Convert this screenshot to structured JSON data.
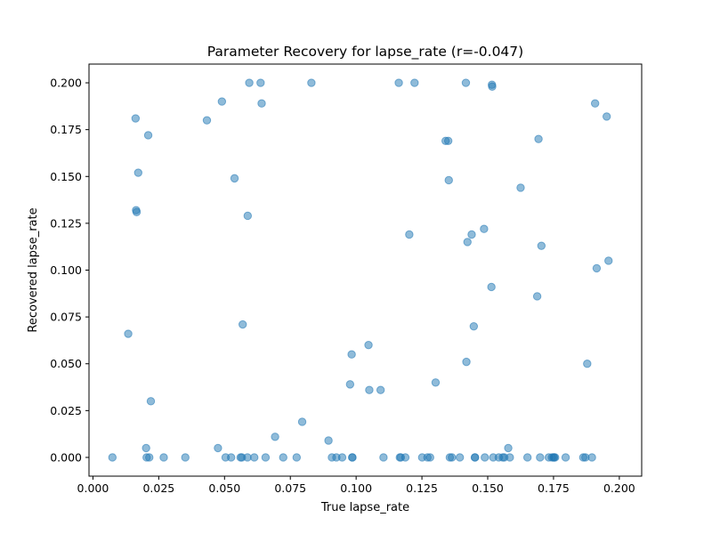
{
  "chart_data": {
    "type": "scatter",
    "title": "Parameter Recovery for lapse_rate (r=-0.047)",
    "xlabel": "True lapse_rate",
    "ylabel": "Recovered lapse_rate",
    "xlim": [
      -0.0015,
      0.2085
    ],
    "ylim": [
      -0.01,
      0.21
    ],
    "x_ticks": [
      0.0,
      0.025,
      0.05,
      0.075,
      0.1,
      0.125,
      0.15,
      0.175,
      0.2
    ],
    "x_tick_labels": [
      "0.000",
      "0.025",
      "0.050",
      "0.075",
      "0.100",
      "0.125",
      "0.150",
      "0.175",
      "0.200"
    ],
    "y_ticks": [
      0.0,
      0.025,
      0.05,
      0.075,
      0.1,
      0.125,
      0.15,
      0.175,
      0.2
    ],
    "y_tick_labels": [
      "0.000",
      "0.025",
      "0.050",
      "0.075",
      "0.100",
      "0.125",
      "0.150",
      "0.175",
      "0.200"
    ],
    "grid": false,
    "marker_color": "#1f77b4",
    "marker_alpha": 0.5,
    "points": [
      [
        0.0074,
        0.0
      ],
      [
        0.0134,
        0.066
      ],
      [
        0.0162,
        0.181
      ],
      [
        0.0164,
        0.132
      ],
      [
        0.0166,
        0.131
      ],
      [
        0.0172,
        0.152
      ],
      [
        0.0202,
        0.005
      ],
      [
        0.0204,
        0.0
      ],
      [
        0.021,
        0.172
      ],
      [
        0.0214,
        0.0
      ],
      [
        0.022,
        0.03
      ],
      [
        0.0269,
        0.0
      ],
      [
        0.0351,
        0.0
      ],
      [
        0.0433,
        0.18
      ],
      [
        0.0475,
        0.005
      ],
      [
        0.049,
        0.19
      ],
      [
        0.0504,
        0.0
      ],
      [
        0.0525,
        0.0
      ],
      [
        0.0538,
        0.149
      ],
      [
        0.0561,
        0.0
      ],
      [
        0.0566,
        0.0
      ],
      [
        0.0569,
        0.071
      ],
      [
        0.0587,
        0.0
      ],
      [
        0.0588,
        0.129
      ],
      [
        0.0594,
        0.2
      ],
      [
        0.0613,
        0.0
      ],
      [
        0.0637,
        0.2
      ],
      [
        0.0641,
        0.189
      ],
      [
        0.0656,
        0.0
      ],
      [
        0.0692,
        0.011
      ],
      [
        0.0723,
        0.0
      ],
      [
        0.0774,
        0.0
      ],
      [
        0.0795,
        0.019
      ],
      [
        0.083,
        0.2
      ],
      [
        0.0895,
        0.009
      ],
      [
        0.0908,
        0.0
      ],
      [
        0.0925,
        0.0
      ],
      [
        0.0947,
        0.0
      ],
      [
        0.0977,
        0.039
      ],
      [
        0.0983,
        0.055
      ],
      [
        0.0985,
        0.0
      ],
      [
        0.0986,
        0.0
      ],
      [
        0.1047,
        0.06
      ],
      [
        0.105,
        0.036
      ],
      [
        0.1093,
        0.036
      ],
      [
        0.1104,
        0.0
      ],
      [
        0.1162,
        0.2
      ],
      [
        0.1166,
        0.0
      ],
      [
        0.117,
        0.0
      ],
      [
        0.1187,
        0.0
      ],
      [
        0.1202,
        0.119
      ],
      [
        0.1222,
        0.2
      ],
      [
        0.1251,
        0.0
      ],
      [
        0.1271,
        0.0
      ],
      [
        0.1281,
        0.0
      ],
      [
        0.1302,
        0.04
      ],
      [
        0.134,
        0.169
      ],
      [
        0.135,
        0.169
      ],
      [
        0.1352,
        0.148
      ],
      [
        0.1356,
        0.0
      ],
      [
        0.1364,
        0.0
      ],
      [
        0.1394,
        0.0
      ],
      [
        0.1417,
        0.2
      ],
      [
        0.1419,
        0.051
      ],
      [
        0.1423,
        0.115
      ],
      [
        0.1439,
        0.119
      ],
      [
        0.1447,
        0.07
      ],
      [
        0.1451,
        0.0
      ],
      [
        0.1452,
        0.0
      ],
      [
        0.1486,
        0.122
      ],
      [
        0.1489,
        0.0
      ],
      [
        0.1514,
        0.091
      ],
      [
        0.1516,
        0.199
      ],
      [
        0.1517,
        0.198
      ],
      [
        0.1521,
        0.0
      ],
      [
        0.1542,
        0.0
      ],
      [
        0.1557,
        0.0
      ],
      [
        0.1563,
        0.0
      ],
      [
        0.1578,
        0.005
      ],
      [
        0.1584,
        0.0
      ],
      [
        0.1625,
        0.144
      ],
      [
        0.1651,
        0.0
      ],
      [
        0.1688,
        0.086
      ],
      [
        0.1693,
        0.17
      ],
      [
        0.1699,
        0.0
      ],
      [
        0.1704,
        0.113
      ],
      [
        0.1732,
        0.0
      ],
      [
        0.1744,
        0.0
      ],
      [
        0.175,
        0.0
      ],
      [
        0.1752,
        0.0
      ],
      [
        0.1756,
        0.0
      ],
      [
        0.1796,
        0.0
      ],
      [
        0.1863,
        0.0
      ],
      [
        0.1871,
        0.0
      ],
      [
        0.1878,
        0.05
      ],
      [
        0.1896,
        0.0
      ],
      [
        0.1908,
        0.189
      ],
      [
        0.1914,
        0.101
      ],
      [
        0.1952,
        0.182
      ],
      [
        0.1959,
        0.105
      ]
    ]
  }
}
